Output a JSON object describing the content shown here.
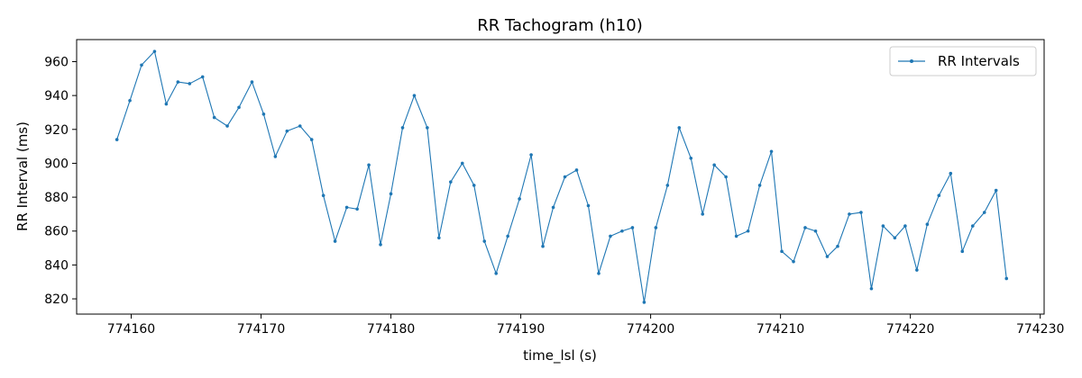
{
  "chart_data": {
    "type": "line",
    "title": "RR Tachogram (h10)",
    "xlabel": "time_lsl (s)",
    "ylabel": "RR Interval (ms)",
    "xlim": [
      774155.8,
      774230.3
    ],
    "ylim": [
      811,
      973
    ],
    "xticks": [
      774160,
      774170,
      774180,
      774190,
      774200,
      774210,
      774220,
      774230
    ],
    "yticks": [
      820,
      840,
      860,
      880,
      900,
      920,
      940,
      960
    ],
    "grid": false,
    "legend_position": "top-right",
    "series_color": "#1f77b4",
    "series": [
      {
        "name": "RR Intervals",
        "marker": "dot",
        "x": [
          774158.9,
          774159.9,
          774160.8,
          774161.8,
          774162.7,
          774163.6,
          774164.5,
          774165.5,
          774166.4,
          774167.4,
          774168.3,
          774169.3,
          774170.2,
          774171.1,
          774172.0,
          774173.0,
          774173.9,
          774174.8,
          774175.7,
          774176.6,
          774177.4,
          774178.3,
          774179.2,
          774180.0,
          774180.9,
          774181.8,
          774182.8,
          774183.7,
          774184.6,
          774185.5,
          774186.4,
          774187.2,
          774188.1,
          774189.0,
          774189.9,
          774190.8,
          774191.7,
          774192.5,
          774193.4,
          774194.3,
          774195.2,
          774196.0,
          774196.9,
          774197.8,
          774198.6,
          774199.5,
          774200.4,
          774201.3,
          774202.2,
          774203.1,
          774204.0,
          774204.9,
          774205.8,
          774206.6,
          774207.5,
          774208.4,
          774209.3,
          774210.1,
          774211.0,
          774211.9,
          774212.7,
          774213.6,
          774214.4,
          774215.3,
          774216.2,
          774217.0,
          774217.9,
          774218.8,
          774219.6,
          774220.5,
          774221.3,
          774222.2,
          774223.1,
          774224.0,
          774224.8,
          774225.7,
          774226.6,
          774227.4
        ],
        "y": [
          914,
          937,
          958,
          966,
          935,
          948,
          947,
          951,
          927,
          922,
          933,
          948,
          929,
          904,
          919,
          922,
          914,
          881,
          854,
          874,
          873,
          899,
          852,
          882,
          921,
          940,
          921,
          856,
          889,
          900,
          887,
          854,
          835,
          857,
          879,
          905,
          851,
          874,
          892,
          896,
          875,
          835,
          857,
          860,
          862,
          818,
          862,
          887,
          921,
          903,
          870,
          899,
          892,
          857,
          860,
          887,
          907,
          848,
          842,
          862,
          860,
          845,
          851,
          870,
          871,
          826,
          863,
          856,
          863,
          837,
          864,
          881,
          894,
          848,
          863,
          871,
          884,
          832
        ]
      }
    ]
  }
}
